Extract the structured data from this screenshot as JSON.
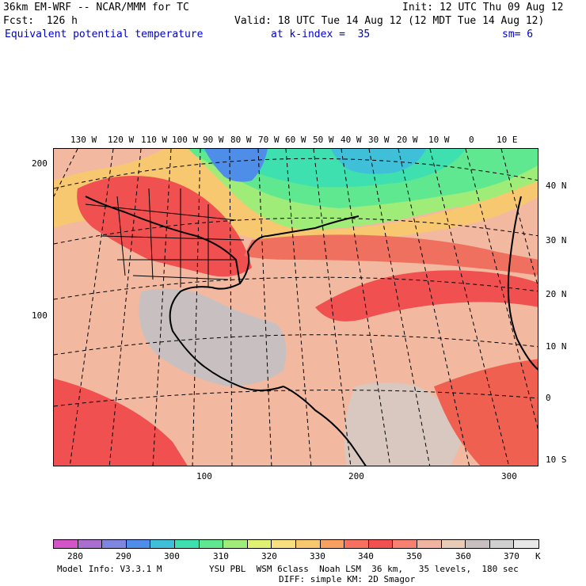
{
  "header": {
    "model_line": "36km EM-WRF -- NCAR/MMM for TC",
    "init_line": "Init: 12 UTC Thu 09 Aug 12",
    "fcst_line": "Fcst:  126 h",
    "valid_line": "Valid: 18 UTC Tue 14 Aug 12 (12 MDT Tue 14 Aug 12)",
    "field_line": "Equivalent potential temperature",
    "level_line": "at k-index =  35",
    "smooth_line": "sm= 6"
  },
  "longitude_labels": [
    "130 W",
    "120 W",
    "110 W",
    "100 W",
    "90 W",
    "80 W",
    "70 W",
    "60 W",
    "50 W",
    "40 W",
    "30 W",
    "20 W",
    "10 W",
    "0",
    "10 E"
  ],
  "latitude_labels": [
    "40 N",
    "30 N",
    "20 N",
    "10 N",
    "0",
    "10 S"
  ],
  "grid_left_labels": [
    "200",
    "100"
  ],
  "grid_bottom_labels": [
    "100",
    "200",
    "300"
  ],
  "colorbar": {
    "labels": [
      "280",
      "290",
      "300",
      "310",
      "320",
      "330",
      "340",
      "350",
      "360",
      "370"
    ],
    "unit": "K",
    "colors": [
      "#d455c8",
      "#a96ecf",
      "#7f86e0",
      "#4f8ee8",
      "#3fc0d8",
      "#3fe0b0",
      "#60e890",
      "#a0ec78",
      "#e0f070",
      "#f8e080",
      "#f8c870",
      "#f8a060",
      "#f87060",
      "#f05050",
      "#f88070",
      "#f0b4a0",
      "#e8ccb8",
      "#c8c0c0",
      "#d0d0d0",
      "#e8e8e8"
    ]
  },
  "footer": {
    "model_info": "Model Info: V3.3.1 M",
    "physics": "YSU PBL  WSM 6class  Noah LSM  36 km,   35 levels,  180 sec",
    "diffusion": "DIFF: simple KM: 2D Smagor"
  }
}
